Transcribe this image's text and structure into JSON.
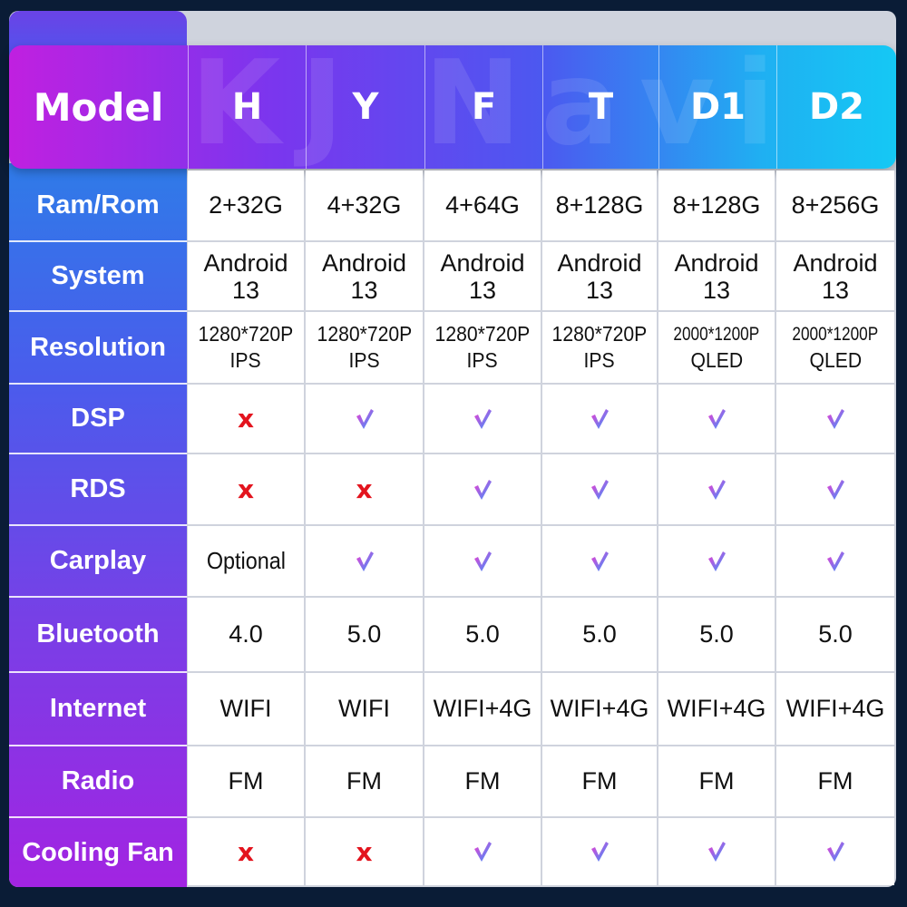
{
  "watermark": "KJ Navi",
  "colors": {
    "check_start": "#f23bd0",
    "check_end": "#2f9bff",
    "cross": "#e3141e"
  },
  "header": {
    "label": "Model",
    "models": [
      "H",
      "Y",
      "F",
      "T",
      "D1",
      "D2"
    ]
  },
  "rows": [
    {
      "label": "Ram/Rom",
      "cells": [
        {
          "kind": "text",
          "lines": [
            "2+32G"
          ]
        },
        {
          "kind": "text",
          "lines": [
            "4+32G"
          ]
        },
        {
          "kind": "text",
          "lines": [
            "4+64G"
          ]
        },
        {
          "kind": "text",
          "lines": [
            "8+128G"
          ]
        },
        {
          "kind": "text",
          "lines": [
            "8+128G"
          ]
        },
        {
          "kind": "text",
          "lines": [
            "8+256G"
          ]
        }
      ]
    },
    {
      "label": "System",
      "cells": [
        {
          "kind": "text",
          "lines": [
            "Android",
            "13"
          ]
        },
        {
          "kind": "text",
          "lines": [
            "Android",
            "13"
          ]
        },
        {
          "kind": "text",
          "lines": [
            "Android",
            "13"
          ]
        },
        {
          "kind": "text",
          "lines": [
            "Android",
            "13"
          ]
        },
        {
          "kind": "text",
          "lines": [
            "Android",
            "13"
          ]
        },
        {
          "kind": "text",
          "lines": [
            "Android",
            "13"
          ]
        }
      ]
    },
    {
      "label": "Resolution",
      "cells": [
        {
          "kind": "text",
          "lines": [
            "1280*720P",
            "IPS"
          ]
        },
        {
          "kind": "text",
          "lines": [
            "1280*720P",
            "IPS"
          ]
        },
        {
          "kind": "text",
          "lines": [
            "1280*720P",
            "IPS"
          ]
        },
        {
          "kind": "text",
          "lines": [
            "1280*720P",
            "IPS"
          ]
        },
        {
          "kind": "text",
          "lines": [
            "2000*1200P",
            "QLED"
          ]
        },
        {
          "kind": "text",
          "lines": [
            "2000*1200P",
            "QLED"
          ]
        }
      ]
    },
    {
      "label": "DSP",
      "cells": [
        {
          "kind": "no"
        },
        {
          "kind": "yes"
        },
        {
          "kind": "yes"
        },
        {
          "kind": "yes"
        },
        {
          "kind": "yes"
        },
        {
          "kind": "yes"
        }
      ]
    },
    {
      "label": "RDS",
      "cells": [
        {
          "kind": "no"
        },
        {
          "kind": "no"
        },
        {
          "kind": "yes"
        },
        {
          "kind": "yes"
        },
        {
          "kind": "yes"
        },
        {
          "kind": "yes"
        }
      ]
    },
    {
      "label": "Carplay",
      "cells": [
        {
          "kind": "text",
          "lines": [
            "Optional"
          ]
        },
        {
          "kind": "yes"
        },
        {
          "kind": "yes"
        },
        {
          "kind": "yes"
        },
        {
          "kind": "yes"
        },
        {
          "kind": "yes"
        }
      ]
    },
    {
      "label": "Bluetooth",
      "cells": [
        {
          "kind": "text",
          "lines": [
            "4.0"
          ]
        },
        {
          "kind": "text",
          "lines": [
            "5.0"
          ]
        },
        {
          "kind": "text",
          "lines": [
            "5.0"
          ]
        },
        {
          "kind": "text",
          "lines": [
            "5.0"
          ]
        },
        {
          "kind": "text",
          "lines": [
            "5.0"
          ]
        },
        {
          "kind": "text",
          "lines": [
            "5.0"
          ]
        }
      ]
    },
    {
      "label": "Internet",
      "cells": [
        {
          "kind": "text",
          "lines": [
            "WIFI"
          ]
        },
        {
          "kind": "text",
          "lines": [
            "WIFI"
          ]
        },
        {
          "kind": "text",
          "lines": [
            "WIFI+4G"
          ]
        },
        {
          "kind": "text",
          "lines": [
            "WIFI+4G"
          ]
        },
        {
          "kind": "text",
          "lines": [
            "WIFI+4G"
          ]
        },
        {
          "kind": "text",
          "lines": [
            "WIFI+4G"
          ]
        }
      ]
    },
    {
      "label": "Radio",
      "cells": [
        {
          "kind": "text",
          "lines": [
            "FM"
          ]
        },
        {
          "kind": "text",
          "lines": [
            "FM"
          ]
        },
        {
          "kind": "text",
          "lines": [
            "FM"
          ]
        },
        {
          "kind": "text",
          "lines": [
            "FM"
          ]
        },
        {
          "kind": "text",
          "lines": [
            "FM"
          ]
        },
        {
          "kind": "text",
          "lines": [
            "FM"
          ]
        }
      ]
    },
    {
      "label": "Cooling Fan",
      "cells": [
        {
          "kind": "no"
        },
        {
          "kind": "no"
        },
        {
          "kind": "yes"
        },
        {
          "kind": "yes"
        },
        {
          "kind": "yes"
        },
        {
          "kind": "yes"
        }
      ]
    }
  ]
}
